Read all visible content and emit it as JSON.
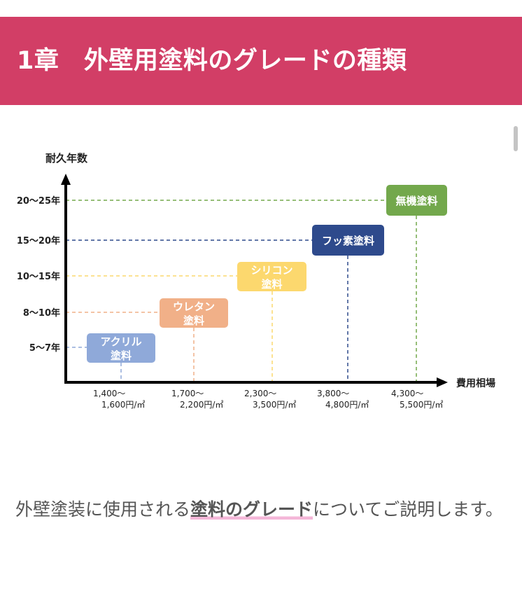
{
  "header": {
    "title": "1章　外壁用塗料のグレードの種類",
    "color": "#d23e66"
  },
  "chart_data": {
    "type": "diagram",
    "ylabel": "耐久年数",
    "xlabel": "費用相場",
    "y_ticks": [
      "20〜25年",
      "15〜20年",
      "10〜15年",
      "8〜10年",
      "5〜7年"
    ],
    "x_ticks": [
      [
        "1,400〜",
        "1,600円/㎡"
      ],
      [
        "1,700〜",
        "2,200円/㎡"
      ],
      [
        "2,300〜",
        "3,500円/㎡"
      ],
      [
        "3,800〜",
        "4,800円/㎡"
      ],
      [
        "4,300〜",
        "5,500円/㎡"
      ]
    ],
    "items": [
      {
        "label": [
          "アクリル",
          "塗料"
        ],
        "durability": "5〜7年",
        "cost": "1,400〜1,600円/㎡",
        "color": "#8fa9d9"
      },
      {
        "label": [
          "ウレタン",
          "塗料"
        ],
        "durability": "8〜10年",
        "cost": "1,700〜2,200円/㎡",
        "color": "#f1b088"
      },
      {
        "label": [
          "シリコン",
          "塗料"
        ],
        "durability": "10〜15年",
        "cost": "2,300〜3,500円/㎡",
        "color": "#fcd86e"
      },
      {
        "label": [
          "フッ素塗料"
        ],
        "durability": "15〜20年",
        "cost": "3,800〜4,800円/㎡",
        "color": "#2e4a8c"
      },
      {
        "label": [
          "無機塗料"
        ],
        "durability": "20〜25年",
        "cost": "4,300〜5,500円/㎡",
        "color": "#73a84c"
      }
    ]
  },
  "body": {
    "text_before": "外壁塗装に使用される",
    "highlight": "塗料のグレード",
    "text_after": "についてご説明します。"
  }
}
